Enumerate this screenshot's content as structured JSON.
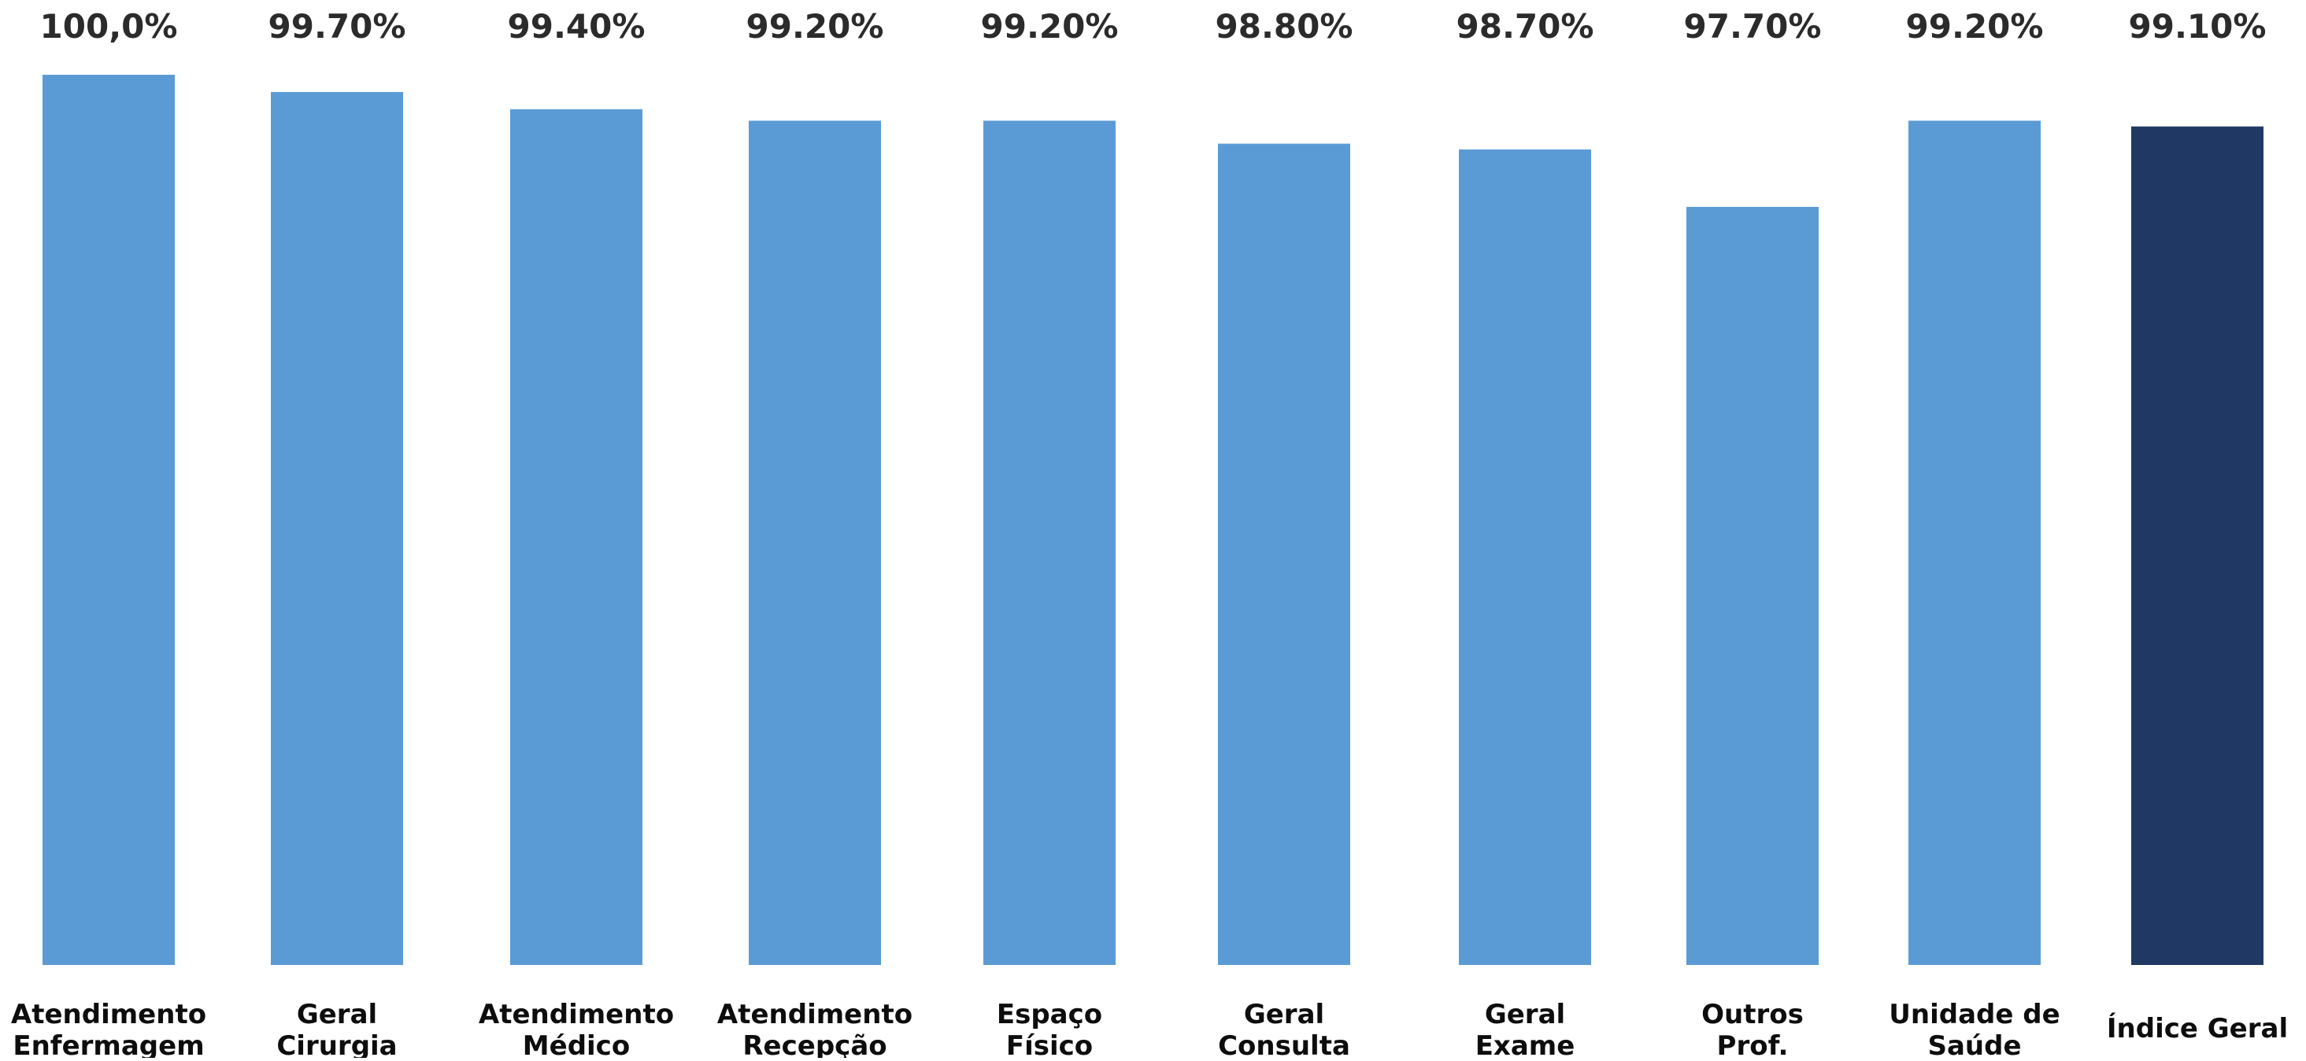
{
  "chart_data": {
    "type": "bar",
    "categories": [
      [
        "Atendimento",
        "Enfermagem"
      ],
      [
        "Geral",
        "Cirurgia"
      ],
      [
        "Atendimento",
        "Médico"
      ],
      [
        "Atendimento",
        "Recepção"
      ],
      [
        "Espaço",
        "Físico"
      ],
      [
        "Geral",
        "Consulta"
      ],
      [
        "Geral",
        "Exame"
      ],
      [
        "Outros",
        "Prof."
      ],
      [
        "Unidade de",
        "Saúde"
      ],
      [
        "Índice Geral"
      ]
    ],
    "values": [
      100.0,
      99.7,
      99.4,
      99.2,
      99.2,
      98.8,
      98.7,
      97.7,
      99.2,
      99.1
    ],
    "data_labels": [
      "100,0%",
      "99.70%",
      "99.40%",
      "99.20%",
      "99.20%",
      "98.80%",
      "98.70%",
      "97.70%",
      "99.20%",
      "99.10%"
    ],
    "bar_colors": [
      "#5b9bd5",
      "#5b9bd5",
      "#5b9bd5",
      "#5b9bd5",
      "#5b9bd5",
      "#5b9bd5",
      "#5b9bd5",
      "#5b9bd5",
      "#5b9bd5",
      "#203864"
    ],
    "title": "",
    "xlabel": "",
    "ylabel": "",
    "ylim": [
      84.5,
      100
    ],
    "grid": false,
    "legend": "none"
  }
}
